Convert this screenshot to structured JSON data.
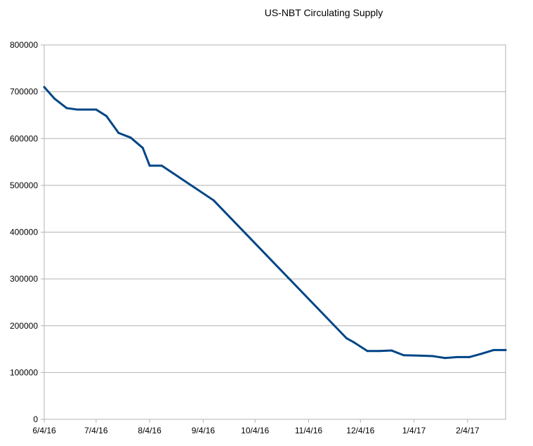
{
  "chart_data": {
    "type": "line",
    "title": "US-NBT Circulating Supply",
    "xlabel": "",
    "ylabel": "",
    "xlim": [
      "2016-06-04",
      "2017-02-26"
    ],
    "ylim": [
      0,
      800000
    ],
    "yticks": [
      0,
      100000,
      200000,
      300000,
      400000,
      500000,
      600000,
      700000,
      800000
    ],
    "yticklabels": [
      "0",
      "100000",
      "200000",
      "300000",
      "400000",
      "500000",
      "600000",
      "700000",
      "800000"
    ],
    "xticks": [
      "2016-06-04",
      "2016-07-04",
      "2016-08-04",
      "2016-09-04",
      "2016-10-04",
      "2016-11-04",
      "2016-12-04",
      "2017-01-04",
      "2017-02-04"
    ],
    "xticklabels": [
      "6/4/16",
      "7/4/16",
      "8/4/16",
      "9/4/16",
      "10/4/16",
      "11/4/16",
      "12/4/16",
      "1/4/17",
      "2/4/17"
    ],
    "grid": true,
    "legend": "none",
    "series": [
      {
        "color": "#004586",
        "x": [
          "2016-06-04",
          "2016-06-10",
          "2016-06-17",
          "2016-06-23",
          "2016-07-04",
          "2016-07-10",
          "2016-07-17",
          "2016-07-24",
          "2016-07-31",
          "2016-08-04",
          "2016-08-11",
          "2016-09-10",
          "2016-11-26",
          "2016-11-30",
          "2016-12-08",
          "2016-12-15",
          "2016-12-22",
          "2016-12-29",
          "2017-01-08",
          "2017-01-15",
          "2017-01-22",
          "2017-01-29",
          "2017-02-05",
          "2017-02-12",
          "2017-02-19",
          "2017-02-26"
        ],
        "values": [
          710000,
          685000,
          665000,
          662000,
          662000,
          648000,
          612000,
          602000,
          580000,
          542000,
          542000,
          468000,
          173000,
          165000,
          146000,
          146000,
          147000,
          137000,
          136000,
          135000,
          131000,
          133000,
          133000,
          140000,
          148000,
          148000
        ]
      }
    ]
  }
}
